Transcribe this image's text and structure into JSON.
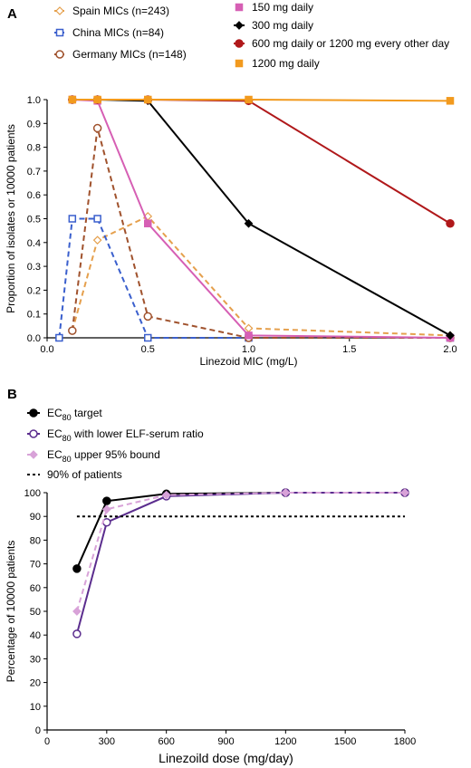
{
  "figure": {
    "panel_a_label": "A",
    "panel_b_label": "B"
  },
  "chart_data": [
    {
      "type": "line",
      "xlabel": "Linezoid MIC (mg/L)",
      "ylabel": "Proportion of isolates or 10000 patients",
      "xlim": [
        0.0,
        2.0
      ],
      "ylim": [
        0.0,
        1.0
      ],
      "xticks": [
        "0.0",
        "0.5",
        "1.0",
        "1.5",
        "2.0"
      ],
      "yticks": [
        "0.0",
        "0.1",
        "0.2",
        "0.3",
        "0.4",
        "0.5",
        "0.6",
        "0.7",
        "0.8",
        "0.9",
        "1.0"
      ],
      "grid": false,
      "series": [
        {
          "name": "Spain MICs (n=243)",
          "color": "#e5a04d",
          "marker": "diamond-open",
          "dashed": true,
          "x": [
            0.125,
            0.25,
            0.5,
            1.0,
            2.0
          ],
          "y": [
            0.03,
            0.41,
            0.51,
            0.04,
            0.01
          ]
        },
        {
          "name": "China MICs (n=84)",
          "color": "#3a5fcd",
          "marker": "square-open",
          "dashed": true,
          "x": [
            0.06,
            0.125,
            0.25,
            0.5,
            1.0,
            2.0
          ],
          "y": [
            0.0,
            0.5,
            0.5,
            0.0,
            0.0,
            0.0
          ]
        },
        {
          "name": "Germany MICs (n=148)",
          "color": "#a0522d",
          "marker": "circle-open",
          "dashed": true,
          "x": [
            0.125,
            0.25,
            0.5,
            1.0,
            2.0
          ],
          "y": [
            0.03,
            0.88,
            0.09,
            0.0,
            0.0
          ]
        },
        {
          "name": "150 mg daily",
          "color": "#d65fb4",
          "marker": "square",
          "dashed": false,
          "x": [
            0.125,
            0.25,
            0.5,
            1.0,
            2.0
          ],
          "y": [
            1.0,
            0.995,
            0.48,
            0.01,
            0.0
          ]
        },
        {
          "name": "300 mg daily",
          "color": "#000000",
          "marker": "diamond",
          "dashed": false,
          "x": [
            0.125,
            0.25,
            0.5,
            1.0,
            2.0
          ],
          "y": [
            1.0,
            1.0,
            0.995,
            0.48,
            0.01
          ]
        },
        {
          "name": "600 mg daily or 1200 mg every other day",
          "color": "#b0181a",
          "marker": "circle",
          "dashed": false,
          "x": [
            0.125,
            0.25,
            0.5,
            1.0,
            2.0
          ],
          "y": [
            1.0,
            1.0,
            1.0,
            0.995,
            0.48
          ]
        },
        {
          "name": "1200 mg daily",
          "color": "#f29a1e",
          "marker": "square",
          "dashed": false,
          "x": [
            0.125,
            0.25,
            0.5,
            1.0,
            2.0
          ],
          "y": [
            1.0,
            1.0,
            1.0,
            1.0,
            0.995
          ]
        }
      ]
    },
    {
      "type": "line",
      "xlabel": "Linezoild dose (mg/day)",
      "ylabel": "Percentage of 10000 patients",
      "xlim": [
        0,
        1800
      ],
      "ylim": [
        0,
        100
      ],
      "xticks": [
        "0",
        "300",
        "600",
        "900",
        "1200",
        "1500",
        "1800"
      ],
      "yticks": [
        "0",
        "10",
        "20",
        "30",
        "40",
        "50",
        "60",
        "70",
        "80",
        "90",
        "100"
      ],
      "grid": false,
      "series": [
        {
          "name": "EC80 target",
          "label_main": "EC",
          "label_sub": "80",
          "label_rest": " target",
          "color": "#000000",
          "marker": "circle",
          "dashed": false,
          "x": [
            150,
            300,
            600,
            1200,
            1800
          ],
          "y": [
            68,
            96.5,
            99.5,
            100,
            100
          ]
        },
        {
          "name": "EC80 with lower ELF-serum ratio",
          "label_main": "EC",
          "label_sub": "80",
          "label_rest": " with lower ELF-serum ratio",
          "color": "#5b2d8e",
          "marker": "circle-open",
          "dashed": false,
          "x": [
            150,
            300,
            600,
            1200,
            1800
          ],
          "y": [
            40.5,
            87.5,
            98.5,
            100,
            100
          ]
        },
        {
          "name": "EC80 upper 95% bound",
          "label_main": "EC",
          "label_sub": "80",
          "label_rest": " upper 95% bound",
          "color": "#d8a2d8",
          "marker": "diamond",
          "dashed": true,
          "x": [
            150,
            300,
            600,
            1200,
            1800
          ],
          "y": [
            50,
            93,
            99,
            100,
            100
          ]
        },
        {
          "name": "90% of patients",
          "label_main": "90% of patients",
          "label_sub": "",
          "label_rest": "",
          "color": "#000000",
          "marker": "none",
          "dotted": true,
          "x": [
            150,
            1800
          ],
          "y": [
            90,
            90
          ]
        }
      ]
    }
  ]
}
